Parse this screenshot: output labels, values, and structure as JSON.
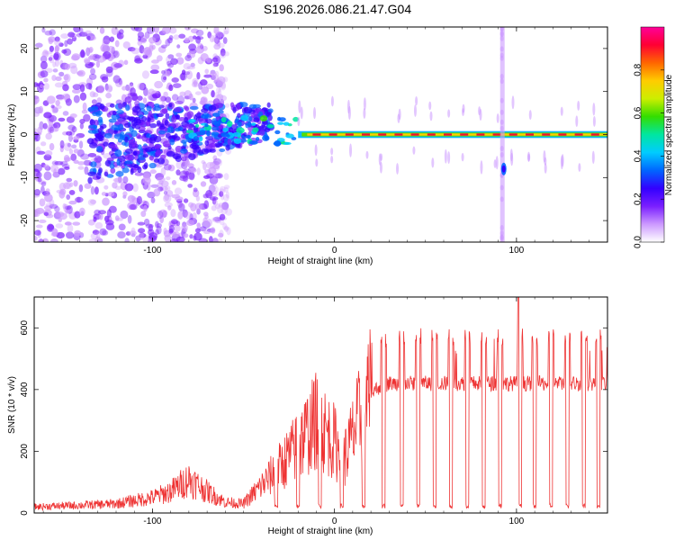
{
  "title": "S196.2026.086.21.47.G04",
  "chart_data": [
    {
      "type": "heatmap",
      "xlabel": "Height of straight line (km)",
      "ylabel": "Frequency (Hz)",
      "xlim": [
        -165,
        150
      ],
      "ylim": [
        -25,
        25
      ],
      "xticks": [
        -100,
        0,
        100
      ],
      "yticks": [
        -20,
        -10,
        0,
        10,
        20
      ],
      "colorbar": {
        "label": "Normalized spectral amplitude",
        "range": [
          0,
          1
        ],
        "ticks": [
          "0.0",
          "0.2",
          "0.4",
          "0.6",
          "0.8"
        ],
        "tick_values": [
          0,
          0.2,
          0.4,
          0.6,
          0.8
        ],
        "colors": [
          "#ffffff",
          "#cc99ff",
          "#7a1fff",
          "#3300ff",
          "#0066ff",
          "#00ccff",
          "#00e6a0",
          "#33dd00",
          "#ccee00",
          "#ffcc00",
          "#ff6600",
          "#ff0033",
          "#ff0099"
        ]
      },
      "features": [
        {
          "description_x_range": [
            -165,
            -60
          ],
          "freq_spread": 25,
          "note": "diffuse scattered noise"
        },
        {
          "description_x_range": [
            -60,
            -20
          ],
          "freq_center": 2,
          "note": "converging blobs"
        },
        {
          "description_x_range": [
            -20,
            150
          ],
          "freq_center": 0,
          "note": "carrier line near 0 Hz"
        },
        {
          "x": 92,
          "freq_range": [
            -25,
            25
          ],
          "note": "vertical artifact"
        }
      ]
    },
    {
      "type": "line",
      "xlabel": "Height of straight line (km)",
      "ylabel": "SNR (10 * v/v)",
      "xlim": [
        -165,
        150
      ],
      "ylim": [
        0,
        700
      ],
      "xticks": [
        -100,
        0,
        100
      ],
      "yticks": [
        0,
        200,
        400,
        600
      ],
      "line_color": "#ee3333",
      "envelope": {
        "x": [
          -165,
          -140,
          -120,
          -100,
          -90,
          -80,
          -70,
          -60,
          -50,
          -40,
          -30,
          -20,
          -10,
          0,
          5,
          10,
          15,
          20,
          25,
          30,
          150
        ],
        "snr": [
          20,
          25,
          30,
          50,
          70,
          110,
          70,
          35,
          30,
          90,
          150,
          220,
          300,
          230,
          170,
          250,
          330,
          390,
          410,
          420,
          420
        ]
      },
      "dropouts_x": [
        -32,
        -20,
        -8,
        4,
        16,
        27,
        37,
        46,
        55,
        64,
        73,
        82,
        91,
        102,
        110,
        119,
        128,
        137,
        145
      ],
      "peaks": [
        {
          "x": 101,
          "snr": 700
        }
      ]
    }
  ]
}
